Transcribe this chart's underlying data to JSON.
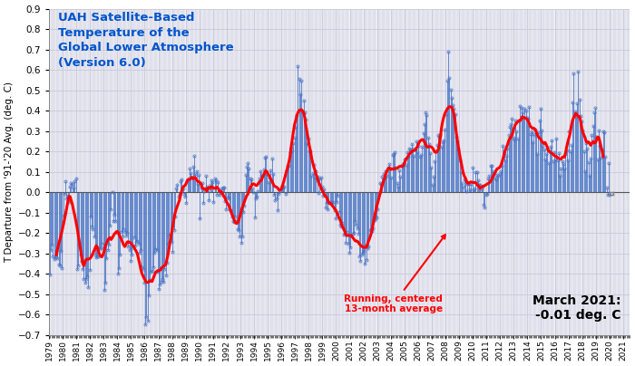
{
  "title_line1": "UAH Satellite-Based",
  "title_line2": "Temperature of the",
  "title_line3": "Global Lower Atmosphere",
  "title_line4": "(Version 6.0)",
  "title_color": "#0055CC",
  "ylabel": "T Departure from '91-'20 Avg. (deg. C)",
  "annotation_label": "Running, centered\n13-month average",
  "annotation_color": "red",
  "last_label_line1": "March 2021:",
  "last_label_line2": "-0.01 deg. C",
  "ylim": [
    -0.7,
    0.9
  ],
  "monthly_data": [
    -0.401,
    -0.284,
    -0.258,
    -0.315,
    -0.329,
    -0.32,
    -0.289,
    -0.323,
    -0.355,
    -0.359,
    -0.286,
    -0.371,
    -0.114,
    -0.008,
    0.055,
    -0.028,
    -0.016,
    -0.047,
    0.028,
    0.047,
    0.039,
    0.025,
    0.056,
    0.068,
    -0.376,
    -0.358,
    -0.257,
    -0.304,
    -0.338,
    -0.377,
    -0.427,
    -0.444,
    -0.426,
    -0.411,
    -0.464,
    -0.38,
    -0.121,
    -0.166,
    -0.18,
    -0.218,
    -0.307,
    -0.32,
    -0.314,
    -0.313,
    -0.279,
    -0.269,
    -0.253,
    -0.274,
    -0.477,
    -0.444,
    -0.321,
    -0.284,
    -0.257,
    -0.165,
    -0.082,
    0.002,
    -0.139,
    -0.108,
    -0.143,
    -0.198,
    -0.397,
    -0.372,
    -0.305,
    -0.194,
    -0.215,
    -0.181,
    -0.194,
    -0.213,
    -0.197,
    -0.265,
    -0.285,
    -0.338,
    -0.306,
    -0.271,
    -0.221,
    -0.261,
    -0.244,
    -0.238,
    -0.254,
    -0.296,
    -0.285,
    -0.369,
    -0.377,
    -0.441,
    -0.646,
    -0.611,
    -0.63,
    -0.505,
    -0.431,
    -0.39,
    -0.385,
    -0.366,
    -0.297,
    -0.278,
    -0.284,
    -0.388,
    -0.472,
    -0.454,
    -0.437,
    -0.423,
    -0.438,
    -0.378,
    -0.406,
    -0.345,
    -0.253,
    -0.214,
    -0.224,
    -0.242,
    -0.29,
    -0.187,
    -0.118,
    0.021,
    0.037,
    -0.022,
    -0.013,
    0.056,
    0.064,
    0.017,
    -0.007,
    -0.023,
    -0.054,
    0.06,
    0.069,
    0.117,
    0.094,
    0.074,
    0.125,
    0.18,
    0.089,
    0.103,
    0.039,
    0.087,
    -0.126,
    0.022,
    0.047,
    -0.05,
    0.004,
    0.079,
    0.028,
    0.011,
    -0.038,
    0.036,
    0.061,
    0.051,
    -0.046,
    0.069,
    0.059,
    -0.012,
    0.052,
    -0.012,
    0.001,
    0.018,
    0.024,
    0.025,
    -0.045,
    -0.083,
    -0.025,
    -0.029,
    -0.085,
    -0.088,
    -0.117,
    -0.141,
    -0.144,
    -0.119,
    -0.143,
    -0.183,
    -0.185,
    -0.218,
    -0.249,
    -0.216,
    -0.097,
    -0.067,
    0.085,
    0.126,
    0.143,
    0.118,
    0.069,
    0.063,
    0.02,
    -0.001,
    -0.125,
    -0.029,
    -0.019,
    0.007,
    0.069,
    0.101,
    0.087,
    0.08,
    0.113,
    0.17,
    0.175,
    0.091,
    0.05,
    0.074,
    0.106,
    0.166,
    0.089,
    -0.012,
    -0.038,
    -0.03,
    -0.089,
    -0.007,
    0.005,
    0.02,
    0.031,
    0.024,
    0.029,
    -0.006,
    0.107,
    0.131,
    0.131,
    0.195,
    0.217,
    0.204,
    0.239,
    0.268,
    0.323,
    0.379,
    0.62,
    0.558,
    0.479,
    0.547,
    0.395,
    0.449,
    0.391,
    0.355,
    0.239,
    0.263,
    0.201,
    0.201,
    0.082,
    0.095,
    0.133,
    0.073,
    0.105,
    0.076,
    -0.005,
    0.069,
    0.072,
    0.029,
    -0.017,
    0.016,
    -0.073,
    -0.054,
    -0.083,
    -0.046,
    -0.048,
    -0.054,
    -0.056,
    -0.047,
    -0.089,
    -0.126,
    -0.049,
    -0.015,
    -0.096,
    -0.158,
    -0.168,
    -0.151,
    -0.206,
    -0.202,
    -0.247,
    -0.195,
    -0.254,
    -0.298,
    -0.272,
    -0.213,
    -0.203,
    -0.198,
    -0.143,
    -0.157,
    -0.178,
    -0.202,
    -0.313,
    -0.337,
    -0.305,
    -0.295,
    -0.289,
    -0.35,
    -0.333,
    -0.274,
    -0.266,
    -0.184,
    -0.183,
    -0.188,
    -0.178,
    -0.137,
    -0.126,
    -0.124,
    -0.083,
    -0.003,
    0.046,
    0.043,
    0.078,
    0.09,
    0.07,
    0.104,
    0.083,
    0.119,
    0.138,
    0.115,
    0.072,
    0.185,
    0.186,
    0.195,
    0.12,
    0.044,
    0.028,
    0.108,
    0.078,
    0.133,
    0.127,
    0.141,
    0.162,
    0.135,
    0.198,
    0.175,
    0.215,
    0.211,
    0.236,
    0.215,
    0.178,
    0.211,
    0.249,
    0.195,
    0.226,
    0.176,
    0.181,
    0.225,
    0.289,
    0.335,
    0.391,
    0.378,
    0.268,
    0.237,
    0.191,
    0.123,
    0.035,
    0.075,
    0.154,
    0.2,
    0.232,
    0.279,
    0.273,
    0.283,
    0.221,
    0.245,
    0.255,
    0.309,
    0.383,
    0.549,
    0.691,
    0.562,
    0.503,
    0.462,
    0.426,
    0.408,
    0.385,
    0.273,
    0.25,
    0.208,
    0.157,
    0.098,
    0.046,
    0.027,
    0.062,
    0.057,
    0.005,
    0.039,
    0.042,
    0.016,
    0.04,
    0.119,
    0.009,
    0.018,
    0.1,
    0.097,
    0.06,
    0.038,
    0.037,
    0.014,
    0.029,
    -0.063,
    -0.073,
    -0.011,
    -0.009,
    0.068,
    0.081,
    0.131,
    0.128,
    0.102,
    0.091,
    0.072,
    0.065,
    0.085,
    0.083,
    0.091,
    0.105,
    0.129,
    0.228,
    0.194,
    0.158,
    0.178,
    0.213,
    0.282,
    0.32,
    0.335,
    0.36,
    0.269,
    0.26,
    0.35,
    0.3,
    0.264,
    0.354,
    0.424,
    0.413,
    0.393,
    0.363,
    0.411,
    0.401,
    0.366,
    0.36,
    0.419,
    0.284,
    0.3,
    0.245,
    0.287,
    0.309,
    0.275,
    0.187,
    0.295,
    0.35,
    0.411,
    0.303,
    0.227,
    0.209,
    0.159,
    0.186,
    0.212,
    0.143,
    0.202,
    0.224,
    0.256,
    0.153,
    0.195,
    0.159,
    0.261,
    0.156,
    0.191,
    0.079,
    0.118,
    0.151,
    0.139,
    0.117,
    0.189,
    0.206,
    0.155,
    0.3,
    0.201,
    0.233,
    0.44,
    0.584,
    0.396,
    0.37,
    0.438,
    0.593,
    0.455,
    0.374,
    0.347,
    0.303,
    0.199,
    0.101,
    0.242,
    0.213,
    0.149,
    0.079,
    0.165,
    0.283,
    0.326,
    0.393,
    0.412,
    0.274,
    0.16,
    0.304,
    0.229,
    0.168,
    0.206,
    0.299,
    0.294,
    0.175,
    0.022,
    -0.013,
    0.143,
    -0.011
  ],
  "line_color": "#4472C4",
  "smooth_color": "red",
  "marker_color": "#4472C4",
  "bg_color": "#FFFFFF",
  "plot_bg_color": "#F0F0F8",
  "grid_color": "#C8C8D8",
  "start_year": 1979,
  "start_month": 1,
  "figwidth": 7.0,
  "figheight": 4.04,
  "dpi": 100
}
